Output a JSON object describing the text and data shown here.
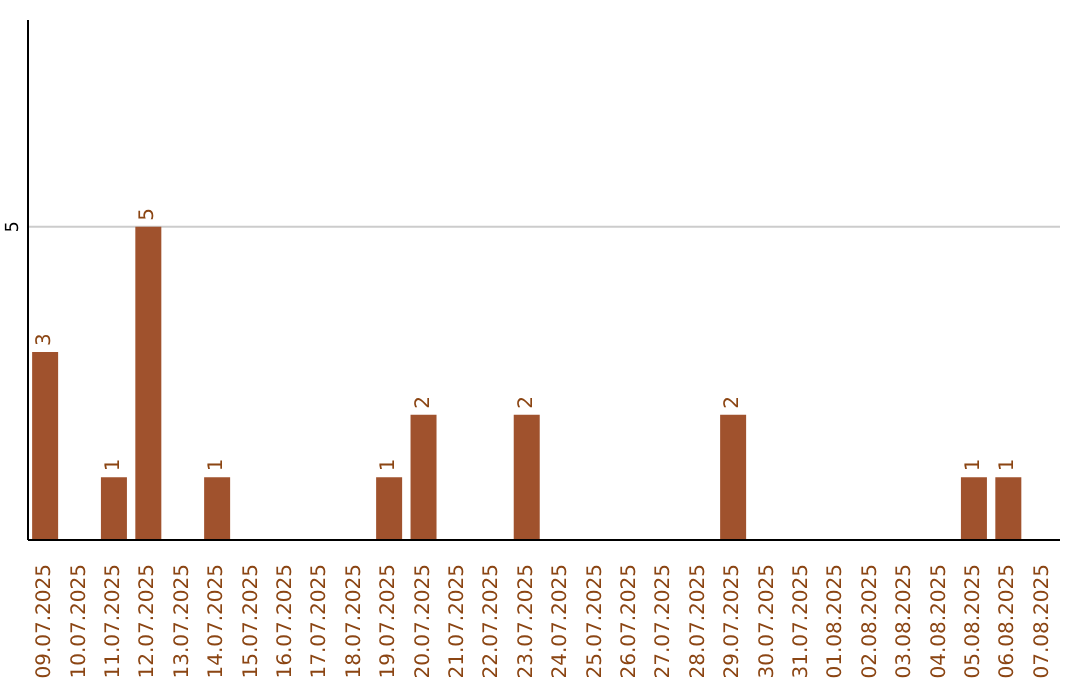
{
  "chart_data": {
    "type": "bar",
    "categories": [
      "09.07.2025",
      "10.07.2025",
      "11.07.2025",
      "12.07.2025",
      "13.07.2025",
      "14.07.2025",
      "15.07.2025",
      "16.07.2025",
      "17.07.2025",
      "18.07.2025",
      "19.07.2025",
      "20.07.2025",
      "21.07.2025",
      "22.07.2025",
      "23.07.2025",
      "24.07.2025",
      "25.07.2025",
      "26.07.2025",
      "27.07.2025",
      "28.07.2025",
      "29.07.2025",
      "30.07.2025",
      "31.07.2025",
      "01.08.2025",
      "02.08.2025",
      "03.08.2025",
      "04.08.2025",
      "05.08.2025",
      "06.08.2025",
      "07.08.2025"
    ],
    "values": [
      3,
      0,
      1,
      5,
      0,
      1,
      0,
      0,
      0,
      0,
      1,
      2,
      0,
      0,
      2,
      0,
      0,
      0,
      0,
      0,
      2,
      0,
      0,
      0,
      0,
      0,
      0,
      1,
      1,
      0
    ],
    "value_labels": [
      "3",
      null,
      "1",
      "5",
      null,
      "1",
      null,
      null,
      null,
      null,
      "1",
      "2",
      null,
      null,
      "2",
      null,
      null,
      null,
      null,
      null,
      "2",
      null,
      null,
      null,
      null,
      null,
      null,
      "1",
      "1",
      null
    ],
    "color": "#a0522d",
    "ylim": [
      0,
      8.3
    ],
    "yticks": [
      5
    ],
    "grid": "y"
  }
}
